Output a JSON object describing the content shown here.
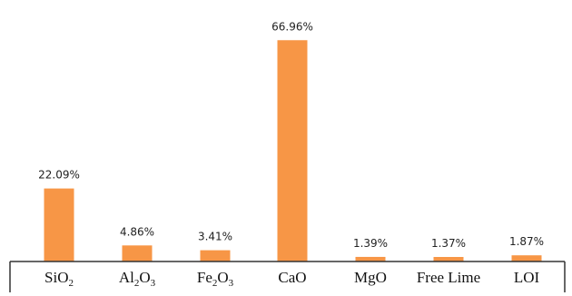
{
  "chart_data": {
    "type": "bar",
    "categories": [
      {
        "text": "SiO",
        "sub": "2"
      },
      {
        "text": "Al",
        "sub": "2",
        "text2": "O",
        "sub2": "3"
      },
      {
        "text": "Fe",
        "sub": "2",
        "text2": "O",
        "sub2": "3"
      },
      {
        "text": "CaO"
      },
      {
        "text": "MgO"
      },
      {
        "text": "Free Lime"
      },
      {
        "text": "LOI"
      }
    ],
    "values": [
      22.09,
      4.86,
      3.41,
      66.96,
      1.39,
      1.37,
      1.87
    ],
    "value_labels": [
      "22.09%",
      "4.86%",
      "3.41%",
      "66.96%",
      "1.39%",
      "1.37%",
      "1.87%"
    ],
    "ylim": [
      0,
      70
    ],
    "bar_color": "#F79646",
    "axis_color": "#333333",
    "grid": false,
    "legend": "none",
    "title": "",
    "xlabel": "",
    "ylabel": ""
  }
}
